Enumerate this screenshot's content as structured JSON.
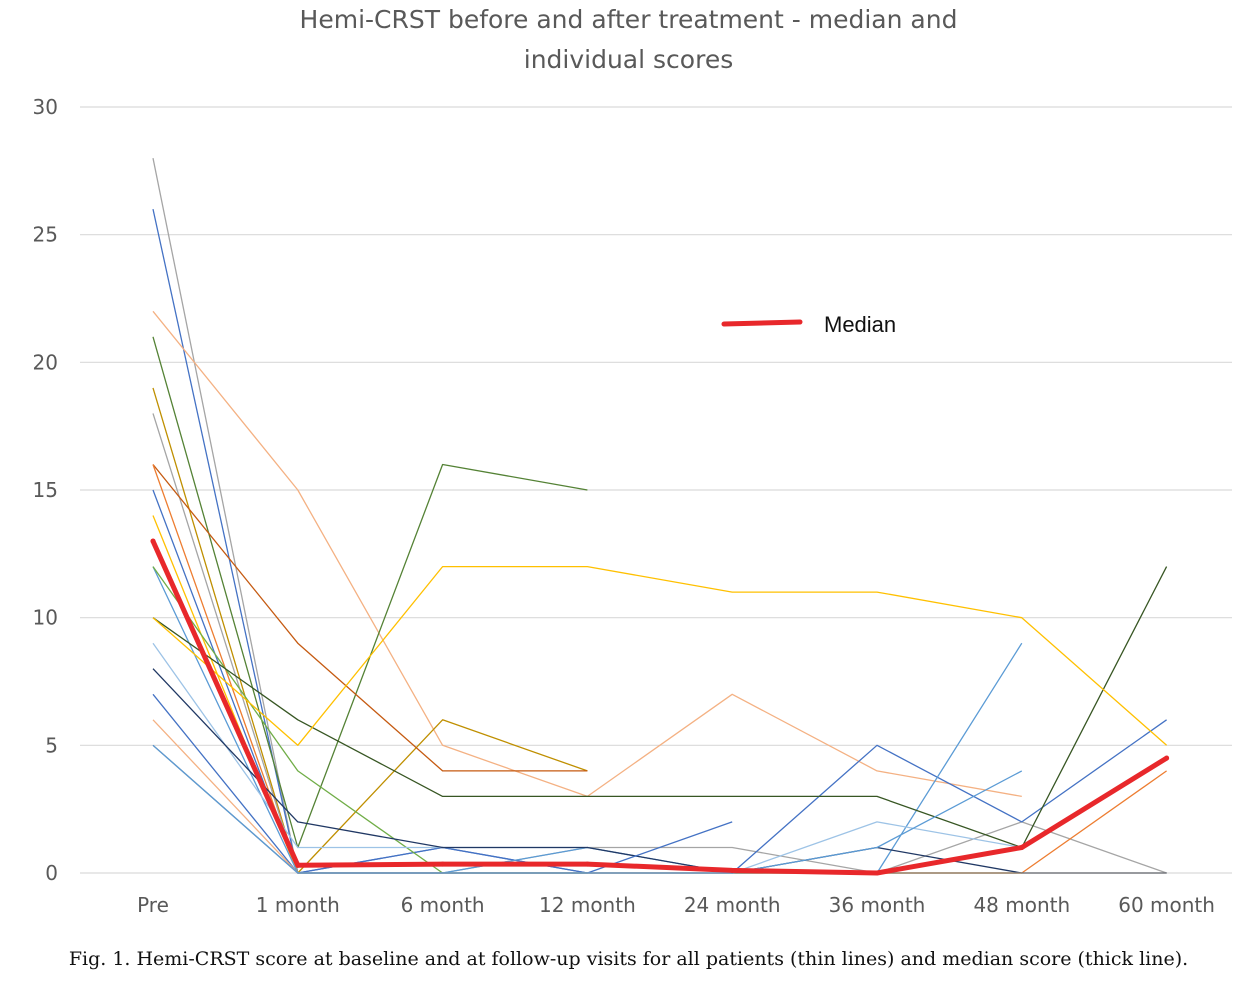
{
  "chart_data": {
    "type": "line",
    "title_lines": [
      "Hemi-CRST before and after treatment - median and",
      "individual scores"
    ],
    "categories": [
      "Pre",
      "1 month",
      "6 month",
      "12 month",
      "24 month",
      "36 month",
      "48 month",
      "60 month"
    ],
    "ylim": [
      0,
      30
    ],
    "yticks": [
      0,
      5,
      10,
      15,
      20,
      25,
      30
    ],
    "grid": true,
    "legend": {
      "position": "top-right",
      "label": "Median"
    },
    "median": {
      "name": "Median",
      "color": "#e8282b",
      "values": [
        13,
        0.3,
        0.35,
        0.35,
        0.1,
        0,
        1,
        4.5
      ]
    },
    "series": [
      {
        "color": "#a5a5a5",
        "values": [
          28,
          0,
          0,
          0,
          null,
          null,
          null,
          null
        ]
      },
      {
        "color": "#4472c4",
        "values": [
          26,
          0,
          1,
          0,
          null,
          null,
          null,
          null
        ]
      },
      {
        "color": "#f4b183",
        "values": [
          22,
          15,
          5,
          3,
          7,
          4,
          3,
          null
        ]
      },
      {
        "color": "#548235",
        "values": [
          21,
          1,
          16,
          15,
          null,
          null,
          null,
          null
        ]
      },
      {
        "color": "#bf8f00",
        "values": [
          19,
          0,
          6,
          4,
          null,
          null,
          null,
          null
        ]
      },
      {
        "color": "#a5a5a5",
        "values": [
          18,
          0,
          0,
          1,
          1,
          0,
          2,
          0
        ]
      },
      {
        "color": "#c55a11",
        "values": [
          16,
          9,
          4,
          4,
          null,
          null,
          null,
          null
        ]
      },
      {
        "color": "#ed7d31",
        "values": [
          16,
          0,
          0,
          0,
          0,
          0,
          0,
          4
        ]
      },
      {
        "color": "#4472c4",
        "values": [
          15,
          0,
          1,
          0,
          0,
          5,
          2,
          6
        ]
      },
      {
        "color": "#ffc000",
        "values": [
          14,
          0,
          0,
          0,
          0,
          0,
          0,
          null
        ]
      },
      {
        "color": "#5b9bd5",
        "values": [
          12,
          0,
          0,
          1,
          0,
          0,
          9,
          null
        ]
      },
      {
        "color": "#70ad47",
        "values": [
          12,
          4,
          0,
          0,
          null,
          null,
          null,
          null
        ]
      },
      {
        "color": "#375623",
        "values": [
          10,
          6,
          3,
          3,
          3,
          3,
          1,
          12
        ]
      },
      {
        "color": "#ffc000",
        "values": [
          10,
          5,
          12,
          12,
          11,
          11,
          10,
          5
        ]
      },
      {
        "color": "#9dc3e6",
        "values": [
          9,
          1,
          1,
          1,
          0,
          2,
          1,
          null
        ]
      },
      {
        "color": "#203864",
        "values": [
          8,
          2,
          1,
          1,
          0,
          1,
          0,
          0
        ]
      },
      {
        "color": "#4472c4",
        "values": [
          7,
          0,
          0,
          0,
          2,
          null,
          null,
          null
        ]
      },
      {
        "color": "#f4b183",
        "values": [
          6,
          0,
          0,
          0,
          0,
          0,
          0,
          null
        ]
      },
      {
        "color": "#7f7f7f",
        "values": [
          5,
          0,
          0,
          0,
          0,
          0,
          0,
          0
        ]
      },
      {
        "color": "#5b9bd5",
        "values": [
          5,
          0,
          0,
          0,
          0,
          1,
          4,
          null
        ]
      }
    ]
  },
  "caption": "Fig. 1.  Hemi-CRST score at baseline and at follow-up visits for all patients (thin lines) and median score (thick line)."
}
